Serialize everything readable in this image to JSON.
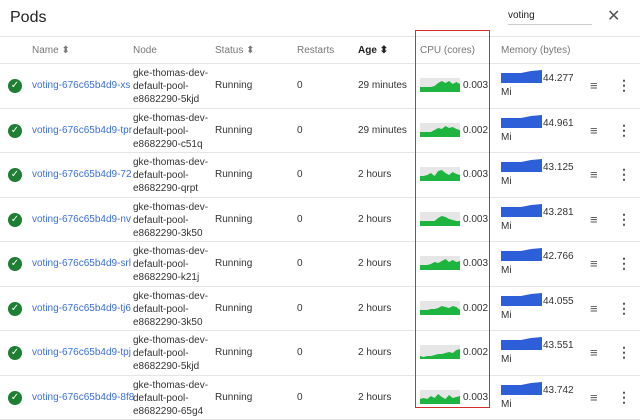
{
  "header": {
    "title": "Pods",
    "search_value": "voting",
    "close_icon": "close-icon"
  },
  "columns": {
    "name": "Name",
    "node": "Node",
    "status": "Status",
    "restarts": "Restarts",
    "age": "Age",
    "cpu": "CPU (cores)",
    "memory": "Memory (bytes)"
  },
  "colors": {
    "link": "#3b6fd6",
    "ok": "#1e7e34",
    "cpu": "#1db53f",
    "memory": "#2d5fd8",
    "highlight": "#d32f2f"
  },
  "rows": [
    {
      "name": "voting-676c65b4d9-xs",
      "node": [
        "gke-thomas-dev-",
        "default-pool-",
        "e8682290-5kjd"
      ],
      "status": "Running",
      "restarts": "0",
      "age": "29 minutes",
      "cpu": "0.003",
      "memory": "44.277",
      "unit": "Mi"
    },
    {
      "name": "voting-676c65b4d9-tpr",
      "node": [
        "gke-thomas-dev-",
        "default-pool-",
        "e8682290-c51q"
      ],
      "status": "Running",
      "restarts": "0",
      "age": "29 minutes",
      "cpu": "0.002",
      "memory": "44.961",
      "unit": "Mi"
    },
    {
      "name": "voting-676c65b4d9-72",
      "node": [
        "gke-thomas-dev-",
        "default-pool-",
        "e8682290-qrpt"
      ],
      "status": "Running",
      "restarts": "0",
      "age": "2 hours",
      "cpu": "0.003",
      "memory": "43.125",
      "unit": "Mi"
    },
    {
      "name": "voting-676c65b4d9-nv",
      "node": [
        "gke-thomas-dev-",
        "default-pool-",
        "e8682290-3k50"
      ],
      "status": "Running",
      "restarts": "0",
      "age": "2 hours",
      "cpu": "0.003",
      "memory": "43.281",
      "unit": "Mi"
    },
    {
      "name": "voting-676c65b4d9-srl",
      "node": [
        "gke-thomas-dev-",
        "default-pool-",
        "e8682290-k21j"
      ],
      "status": "Running",
      "restarts": "0",
      "age": "2 hours",
      "cpu": "0.003",
      "memory": "42.766",
      "unit": "Mi"
    },
    {
      "name": "voting-676c65b4d9-tj6",
      "node": [
        "gke-thomas-dev-",
        "default-pool-",
        "e8682290-3k50"
      ],
      "status": "Running",
      "restarts": "0",
      "age": "2 hours",
      "cpu": "0.002",
      "memory": "44.055",
      "unit": "Mi"
    },
    {
      "name": "voting-676c65b4d9-tpj",
      "node": [
        "gke-thomas-dev-",
        "default-pool-",
        "e8682290-5kjd"
      ],
      "status": "Running",
      "restarts": "0",
      "age": "2 hours",
      "cpu": "0.002",
      "memory": "43.551",
      "unit": "Mi"
    },
    {
      "name": "voting-676c65b4d9-8f8",
      "node": [
        "gke-thomas-dev-",
        "default-pool-",
        "e8682290-65g4"
      ],
      "status": "Running",
      "restarts": "0",
      "age": "2 hours",
      "cpu": "0.003",
      "memory": "43.742",
      "unit": "Mi"
    }
  ]
}
